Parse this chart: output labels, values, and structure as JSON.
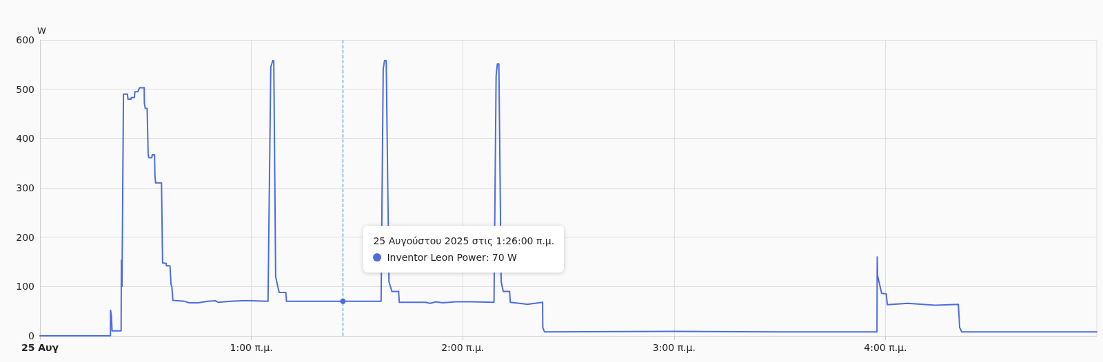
{
  "chart_data": {
    "type": "line",
    "ylabel": "W",
    "xlim": [
      "2025-08-25T00:00",
      "2025-08-25T05:00"
    ],
    "xticks": [
      {
        "value": "2025-08-25T00:00",
        "label": "25 Αυγ"
      },
      {
        "value": "2025-08-25T01:00",
        "label": "1:00 π.μ."
      },
      {
        "value": "2025-08-25T02:00",
        "label": "2:00 π.μ."
      },
      {
        "value": "2025-08-25T03:00",
        "label": "3:00 π.μ."
      },
      {
        "value": "2025-08-25T04:00",
        "label": "4:00 π.μ."
      }
    ],
    "ylim": [
      0,
      600
    ],
    "yticks": [
      0,
      100,
      200,
      300,
      400,
      500,
      600
    ],
    "grid": true,
    "marker": "none",
    "line_style": "solid",
    "series": [
      {
        "color": "#4a6cdf",
        "x": [
          "2025-08-25T00:00:00",
          "2025-08-25T00:20:00",
          "2025-08-25T00:20:02",
          "2025-08-25T00:20:17",
          "2025-08-25T00:20:28",
          "2025-08-25T00:23:02",
          "2025-08-25T00:23:06",
          "2025-08-25T00:23:17",
          "2025-08-25T00:23:42",
          "2025-08-25T00:24:50",
          "2025-08-25T00:24:58",
          "2025-08-25T00:25:52",
          "2025-08-25T00:25:55",
          "2025-08-25T00:26:49",
          "2025-08-25T00:26:56",
          "2025-08-25T00:27:47",
          "2025-08-25T00:27:58",
          "2025-08-25T00:28:16",
          "2025-08-25T00:29:35",
          "2025-08-25T00:29:38",
          "2025-08-25T00:29:53",
          "2025-08-25T00:30:25",
          "2025-08-25T00:30:43",
          "2025-08-25T00:30:54",
          "2025-08-25T00:31:44",
          "2025-08-25T00:31:52",
          "2025-08-25T00:32:31",
          "2025-08-25T00:32:38",
          "2025-08-25T00:32:49",
          "2025-08-25T00:34:30",
          "2025-08-25T00:34:48",
          "2025-08-25T00:35:49",
          "2025-08-25T00:35:53",
          "2025-08-25T00:36:54",
          "2025-08-25T00:37:12",
          "2025-08-25T00:37:26",
          "2025-08-25T00:37:44",
          "2025-08-25T00:41:02",
          "2025-08-25T00:42:22",
          "2025-08-25T00:44:56",
          "2025-08-25T00:47:35",
          "2025-08-25T00:49:52",
          "2025-08-25T00:50:31",
          "2025-08-25T00:54:07",
          "2025-08-25T00:57:22",
          "2025-08-25T01:00:00",
          "2025-08-25T01:04:44",
          "2025-08-25T01:05:31",
          "2025-08-25T01:06:04",
          "2025-08-25T01:06:22",
          "2025-08-25T01:06:54",
          "2025-08-25T01:07:30",
          "2025-08-25T01:07:55",
          "2025-08-25T01:09:47",
          "2025-08-25T01:09:58",
          "2025-08-25T01:26:00",
          "2025-08-25T01:36:50",
          "2025-08-25T01:37:26",
          "2025-08-25T01:37:48",
          "2025-08-25T01:38:17",
          "2025-08-25T01:39:04",
          "2025-08-25T01:39:54",
          "2025-08-25T01:41:49",
          "2025-08-25T01:42:00",
          "2025-08-25T01:49:26",
          "2025-08-25T01:50:46",
          "2025-08-25T01:52:23",
          "2025-08-25T01:54:18",
          "2025-08-25T01:57:58",
          "2025-08-25T02:02:28",
          "2025-08-25T02:08:53",
          "2025-08-25T02:09:29",
          "2025-08-25T02:09:50",
          "2025-08-25T02:10:16",
          "2025-08-25T02:10:55",
          "2025-08-25T02:11:31",
          "2025-08-25T02:13:19",
          "2025-08-25T02:13:30",
          "2025-08-25T02:18:14",
          "2025-08-25T02:22:41",
          "2025-08-25T02:22:44",
          "2025-08-25T02:23:13",
          "2025-08-25T03:00:00",
          "2025-08-25T03:30:00",
          "2025-08-25T03:57:36",
          "2025-08-25T03:57:40",
          "2025-08-25T03:57:47",
          "2025-08-25T03:58:55",
          "2025-08-25T04:00:14",
          "2025-08-25T04:00:32",
          "2025-08-25T04:06:18",
          "2025-08-25T04:14:10",
          "2025-08-25T04:20:42",
          "2025-08-25T04:21:04",
          "2025-08-25T04:21:40",
          "2025-08-25T05:00:00"
        ],
        "values": [
          0,
          0,
          52,
          40,
          10,
          10,
          153,
          100,
          490,
          490,
          480,
          480,
          483,
          483,
          495,
          495,
          498,
          503,
          503,
          472,
          461,
          461,
          367,
          361,
          361,
          367,
          367,
          325,
          310,
          310,
          148,
          147,
          142,
          142,
          104,
          100,
          72,
          70,
          67,
          67,
          70,
          71,
          68,
          70,
          71,
          71,
          70,
          545,
          558,
          558,
          120,
          100,
          88,
          88,
          70,
          70,
          70,
          541,
          558,
          558,
          110,
          90,
          90,
          68,
          68,
          66,
          69,
          67,
          69,
          69,
          68,
          527,
          551,
          551,
          110,
          90,
          90,
          68,
          64,
          68,
          17,
          8,
          9,
          8,
          8,
          160,
          122,
          86,
          85,
          63,
          66,
          62,
          64,
          17,
          8,
          8
        ]
      }
    ],
    "ref_lines": [
      {
        "axis": "x",
        "value": "2025-08-25T01:26:00",
        "color": "#3d8fd6",
        "line_style": "dashed"
      }
    ],
    "annotations": [
      "25 Αυγούστου 2025 στις 1:26:00 π.μ.\nInventor Leon Power: 70 W"
    ]
  }
}
